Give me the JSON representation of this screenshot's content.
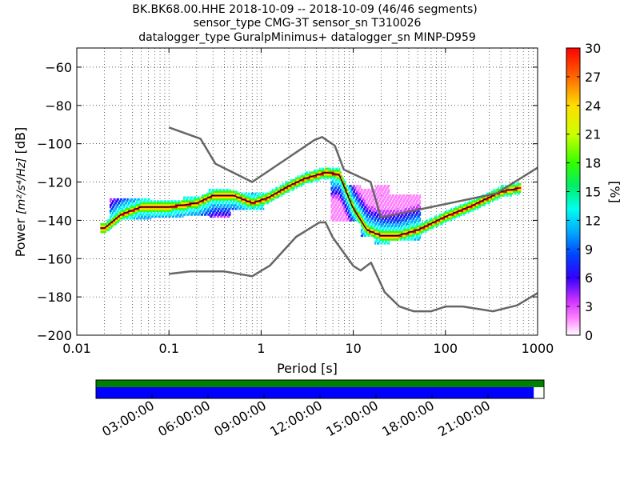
{
  "chart_data": {
    "type": "heatmap",
    "title_lines": [
      "BK.BK68.00.HHE   2018-10-09 -- 2018-10-09  (46/46 segments)",
      "sensor_type CMG-3T sensor_sn T310026",
      "datalogger_type GuralpMinimus+ datalogger_sn MINP-D959"
    ],
    "xlabel": "Period [s]",
    "ylabel_prefix": "Power ",
    "ylabel_math": "[m²/s⁴/Hz]",
    "ylabel_suffix": " [dB]",
    "x_scale": "log",
    "xlim": [
      0.01,
      1000
    ],
    "ylim": [
      -200,
      -50
    ],
    "x_ticks": [
      0.01,
      0.1,
      1,
      10,
      100,
      1000
    ],
    "x_tick_labels": [
      "0.01",
      "0.1",
      "1",
      "10",
      "100",
      "1000"
    ],
    "y_ticks": [
      -200,
      -180,
      -160,
      -140,
      -120,
      -100,
      -80,
      -60
    ],
    "y_tick_labels": [
      "−200",
      "−180",
      "−160",
      "−140",
      "−120",
      "−100",
      "−80",
      "−60"
    ],
    "grid": "dotted",
    "colorbar": {
      "label": "[%]",
      "range": [
        0,
        30
      ],
      "ticks": [
        0,
        3,
        6,
        9,
        12,
        15,
        18,
        21,
        24,
        27,
        30
      ],
      "tick_labels": [
        "0",
        "3",
        "6",
        "9",
        "12",
        "15",
        "18",
        "21",
        "24",
        "27",
        "30"
      ]
    },
    "psd_mode": {
      "period": [
        0.02,
        0.03,
        0.05,
        0.1,
        0.2,
        0.3,
        0.5,
        0.8,
        1.2,
        2,
        3,
        5,
        7,
        10,
        14,
        20,
        30,
        50,
        100,
        200,
        400,
        650
      ],
      "db": [
        -144,
        -137,
        -133,
        -133,
        -131,
        -127,
        -127,
        -131,
        -128,
        -122,
        -118,
        -115,
        -116,
        -134,
        -145,
        -148,
        -148,
        -145,
        -138,
        -132,
        -125,
        -123
      ]
    },
    "psd_spread": [
      {
        "period": 0.04,
        "low": -139,
        "high": -129
      },
      {
        "period": 0.1,
        "low": -138,
        "high": -130
      },
      {
        "period": 0.2,
        "low": -137,
        "high": -128
      },
      {
        "period": 0.35,
        "low": -138,
        "high": -124
      },
      {
        "period": 0.6,
        "low": -134,
        "high": -126
      },
      {
        "period": 10,
        "low": -140,
        "high": -122
      },
      {
        "period": 14,
        "low": -148,
        "high": -124
      },
      {
        "period": 20,
        "low": -152,
        "high": -122
      },
      {
        "period": 30,
        "low": -150,
        "high": -127
      }
    ],
    "noise_model_high": {
      "period": [
        0.1,
        0.22,
        0.32,
        0.8,
        3.8,
        4.6,
        6.3,
        7.9,
        15.4,
        20,
        354.8,
        1000
      ],
      "db": [
        -91.5,
        -97.4,
        -110.5,
        -120,
        -98,
        -96.5,
        -101,
        -113.5,
        -120,
        -138.5,
        -126,
        -112.5
      ]
    },
    "noise_model_low": {
      "period": [
        0.1,
        0.17,
        0.4,
        0.8,
        1.24,
        2.4,
        4.3,
        5,
        6,
        10,
        12,
        15.6,
        21.9,
        31.6,
        45,
        70,
        101,
        154,
        328,
        600,
        1000
      ],
      "db": [
        -168,
        -166.7,
        -166.7,
        -169.2,
        -163.7,
        -148.6,
        -141.1,
        -141.1,
        -149,
        -163.8,
        -166.2,
        -162.1,
        -177.5,
        -185,
        -187.5,
        -187.5,
        -185,
        -185,
        -187.5,
        -184.4,
        -178
      ]
    },
    "timeline": {
      "tick_labels": [
        "03:00:00",
        "06:00:00",
        "09:00:00",
        "12:00:00",
        "15:00:00",
        "18:00:00",
        "21:00:00"
      ],
      "hours": [
        3,
        6,
        9,
        12,
        15,
        18,
        21
      ],
      "range_hours": [
        0,
        24
      ],
      "data_bar_color": "#008000",
      "psd_bar_color": "#0000ff",
      "psd_bar_end_hour": 23.45
    }
  }
}
